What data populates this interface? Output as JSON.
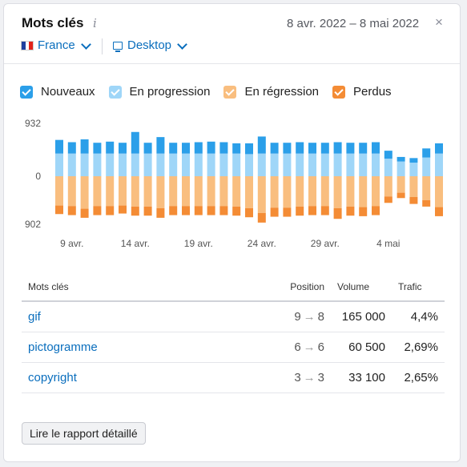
{
  "header": {
    "title": "Mots clés",
    "info_icon": "i",
    "date_range": "8 avr. 2022 – 8 mai 2022",
    "close_icon": "×"
  },
  "filters": {
    "country": "France",
    "country_flag_colors": [
      "#1f3f9e",
      "#ffffff",
      "#e2231a"
    ],
    "device": "Desktop"
  },
  "colors": {
    "nouveaux": "#2b9fe9",
    "en_progression": "#9fd6f8",
    "en_regression": "#f9be7f",
    "perdus": "#f48c35"
  },
  "legend": [
    {
      "label": "Nouveaux",
      "color": "#2b9fe9"
    },
    {
      "label": "En progression",
      "color": "#9fd6f8"
    },
    {
      "label": "En régression",
      "color": "#f9be7f"
    },
    {
      "label": "Perdus",
      "color": "#f48c35"
    }
  ],
  "chart_data": {
    "type": "bar",
    "stacked": true,
    "diverging": true,
    "y_tick_labels": [
      "932",
      "0",
      "902"
    ],
    "ylim": [
      -902,
      932
    ],
    "x_tick_labels": [
      "9 avr.",
      "14 avr.",
      "19 avr.",
      "24 avr.",
      "29 avr.",
      "4 mai"
    ],
    "categories": [
      "8 avr.",
      "9 avr.",
      "10 avr.",
      "11 avr.",
      "12 avr.",
      "13 avr.",
      "14 avr.",
      "15 avr.",
      "16 avr.",
      "17 avr.",
      "18 avr.",
      "19 avr.",
      "20 avr.",
      "21 avr.",
      "22 avr.",
      "23 avr.",
      "24 avr.",
      "25 avr.",
      "26 avr.",
      "27 avr.",
      "28 avr.",
      "29 avr.",
      "30 avr.",
      "1 mai",
      "2 mai",
      "3 mai",
      "4 mai",
      "5 mai",
      "6 mai",
      "7 mai",
      "8 mai"
    ],
    "series": [
      {
        "name": "Nouveaux",
        "values": [
          240,
          200,
          250,
          190,
          210,
          190,
          380,
          190,
          290,
          190,
          190,
          200,
          210,
          200,
          180,
          190,
          300,
          190,
          190,
          200,
          190,
          190,
          200,
          190,
          190,
          200,
          140,
          80,
          80,
          160,
          180
        ]
      },
      {
        "name": "En progression",
        "values": [
          400,
          400,
          400,
          400,
          400,
          400,
          400,
          400,
          400,
          400,
          400,
          400,
          400,
          400,
          400,
          390,
          400,
          400,
          400,
          400,
          400,
          400,
          400,
          400,
          400,
          400,
          310,
          260,
          240,
          330,
          400
        ]
      },
      {
        "name": "En régression",
        "values": [
          -550,
          -560,
          -610,
          -560,
          -560,
          -550,
          -570,
          -570,
          -600,
          -560,
          -560,
          -560,
          -560,
          -560,
          -570,
          -600,
          -690,
          -590,
          -590,
          -570,
          -560,
          -560,
          -600,
          -570,
          -580,
          -560,
          -380,
          -310,
          -390,
          -450,
          -580
        ]
      },
      {
        "name": "Perdus",
        "values": [
          -160,
          -170,
          -170,
          -170,
          -170,
          -150,
          -170,
          -170,
          -180,
          -170,
          -170,
          -170,
          -170,
          -170,
          -170,
          -170,
          -180,
          -170,
          -170,
          -170,
          -170,
          -170,
          -200,
          -170,
          -170,
          -170,
          -120,
          -100,
          -130,
          -120,
          -170
        ]
      }
    ]
  },
  "table": {
    "headers": {
      "keyword": "Mots clés",
      "position": "Position",
      "volume": "Volume",
      "traffic": "Trafic"
    },
    "rows": [
      {
        "keyword": "gif",
        "pos_from": "9",
        "pos_to": "8",
        "volume": "165 000",
        "traffic": "4,4%"
      },
      {
        "keyword": "pictogramme",
        "pos_from": "6",
        "pos_to": "6",
        "volume": "60 500",
        "traffic": "2,69%"
      },
      {
        "keyword": "copyright",
        "pos_from": "3",
        "pos_to": "3",
        "volume": "33 100",
        "traffic": "2,65%"
      }
    ],
    "arrow": "→"
  },
  "button": {
    "label": "Lire le rapport détaillé"
  }
}
